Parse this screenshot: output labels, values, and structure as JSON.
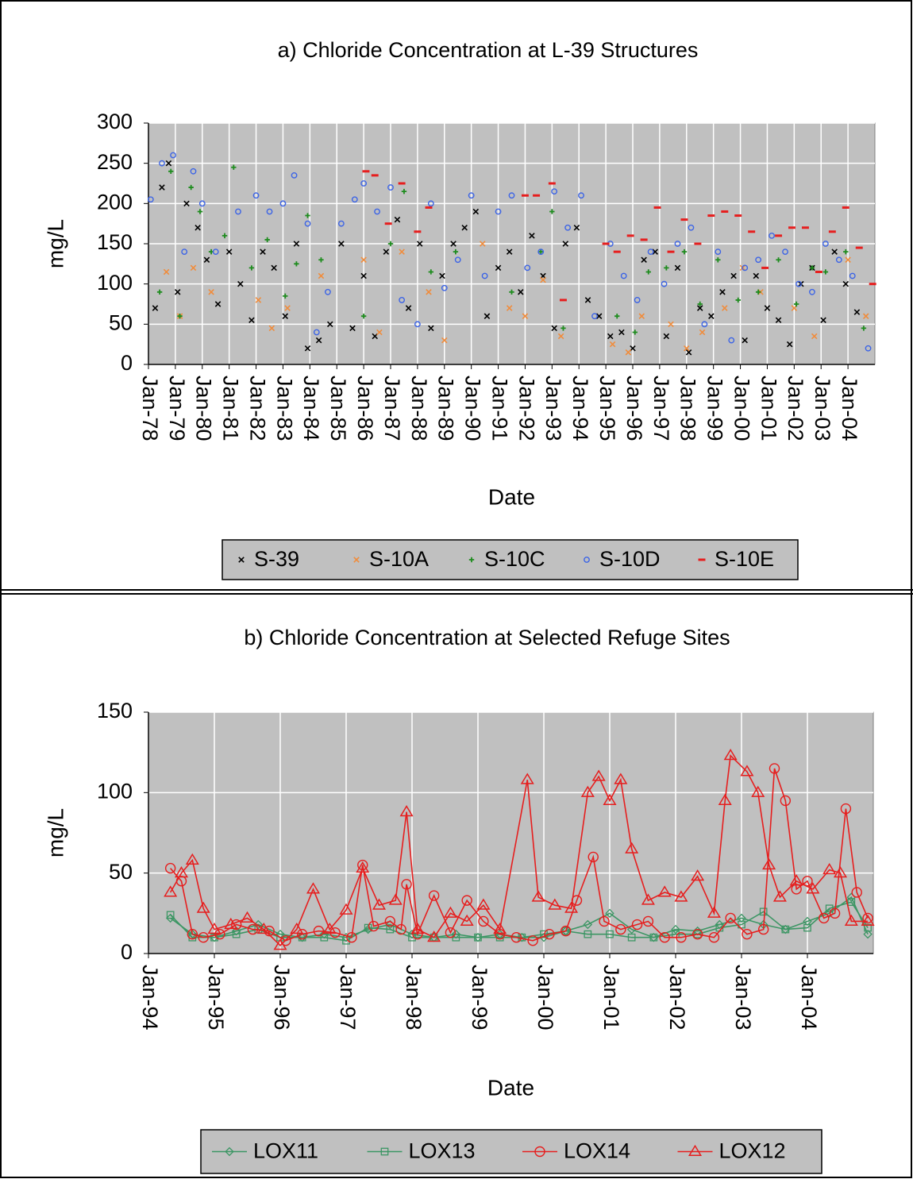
{
  "chart_data": [
    {
      "type": "scatter",
      "title": "a) Chloride Concentration at L-39 Structures",
      "x_label": "Date",
      "y_label": "mg/L",
      "xlim": [
        "Jan-78",
        "Jan-05"
      ],
      "xticks": [
        "Jan-78",
        "Jan-79",
        "Jan-80",
        "Jan-81",
        "Jan-82",
        "Jan-83",
        "Jan-84",
        "Jan-85",
        "Jan-86",
        "Jan-87",
        "Jan-88",
        "Jan-89",
        "Jan-90",
        "Jan-91",
        "Jan-92",
        "Jan-93",
        "Jan-94",
        "Jan-95",
        "Jan-96",
        "Jan-97",
        "Jan-98",
        "Jan-99",
        "Jan-00",
        "Jan-01",
        "Jan-02",
        "Jan-03",
        "Jan-04"
      ],
      "ylim": [
        0,
        300
      ],
      "yticks": [
        0,
        50,
        100,
        150,
        200,
        250,
        300
      ],
      "grid": true,
      "legend": "bottom",
      "series": [
        {
          "name": "S-39",
          "color": "#000000",
          "marker": "x",
          "x": [
            "Apr-78",
            "Jul-78",
            "Oct-78",
            "Feb-79",
            "Jun-79",
            "Nov-79",
            "Mar-80",
            "Aug-80",
            "Jan-81",
            "Jun-81",
            "Nov-81",
            "Apr-82",
            "Sep-82",
            "Feb-83",
            "Jul-83",
            "Dec-83",
            "May-84",
            "Oct-84",
            "Mar-85",
            "Aug-85",
            "Jan-86",
            "Jun-86",
            "Nov-86",
            "Apr-87",
            "Sep-87",
            "Feb-88",
            "Jul-88",
            "Dec-88",
            "May-89",
            "Oct-89",
            "Mar-90",
            "Aug-90",
            "Jan-91",
            "Jun-91",
            "Nov-91",
            "Apr-92",
            "Sep-92",
            "Feb-93",
            "Jul-93",
            "Dec-93",
            "May-94",
            "Oct-94",
            "Mar-95",
            "Aug-95",
            "Jan-96",
            "Jun-96",
            "Nov-96",
            "Apr-97",
            "Sep-97",
            "Feb-98",
            "Jul-98",
            "Dec-98",
            "May-99",
            "Oct-99",
            "Mar-00",
            "Aug-00",
            "Jan-01",
            "Jun-01",
            "Nov-01",
            "Apr-02",
            "Sep-02",
            "Feb-03",
            "Jul-03",
            "Dec-03",
            "May-04"
          ],
          "values": [
            70,
            220,
            250,
            90,
            200,
            170,
            130,
            75,
            140,
            100,
            55,
            140,
            120,
            60,
            150,
            20,
            30,
            50,
            150,
            45,
            110,
            35,
            140,
            180,
            70,
            150,
            45,
            110,
            150,
            170,
            190,
            60,
            120,
            140,
            90,
            160,
            110,
            45,
            150,
            170,
            80,
            60,
            35,
            40,
            20,
            130,
            140,
            35,
            120,
            15,
            70,
            60,
            90,
            110,
            30,
            110,
            70,
            55,
            25,
            100,
            120,
            55,
            140,
            100,
            65
          ]
        },
        {
          "name": "S-10A",
          "color": "#f08c3c",
          "marker": "x",
          "x": [
            "Sep-78",
            "Mar-79",
            "Sep-79",
            "May-80",
            "Feb-82",
            "Aug-82",
            "Mar-83",
            "Jun-84",
            "Jan-86",
            "Aug-86",
            "Jun-87",
            "Jun-88",
            "Jan-89",
            "Jun-90",
            "Jun-91",
            "Jan-92",
            "Sep-92",
            "May-93",
            "Apr-95",
            "Nov-95",
            "May-96",
            "Jun-97",
            "Jan-98",
            "Aug-98",
            "Jun-99",
            "Feb-00",
            "Oct-00",
            "Jan-02",
            "Oct-02",
            "Jan-04",
            "Sep-04"
          ],
          "values": [
            115,
            60,
            120,
            90,
            80,
            45,
            70,
            110,
            130,
            40,
            140,
            90,
            30,
            150,
            70,
            60,
            105,
            35,
            25,
            15,
            60,
            50,
            20,
            40,
            70,
            120,
            90,
            70,
            35,
            130,
            60
          ]
        },
        {
          "name": "S-10C",
          "color": "#1e8c1e",
          "marker": "plus",
          "x": [
            "Jun-78",
            "Nov-78",
            "Mar-79",
            "Aug-79",
            "Dec-79",
            "May-80",
            "Nov-80",
            "Mar-81",
            "Nov-81",
            "Jun-82",
            "Feb-83",
            "Jul-83",
            "Dec-83",
            "Jun-84",
            "Jan-86",
            "Jan-87",
            "Jul-87",
            "Jul-88",
            "Jun-89",
            "Jul-91",
            "Aug-92",
            "Jan-93",
            "Jun-93",
            "Jun-95",
            "Feb-96",
            "Aug-96",
            "Apr-97",
            "Dec-97",
            "Jul-98",
            "Mar-99",
            "Dec-99",
            "Sep-00",
            "Jun-01",
            "Feb-02",
            "Sep-02",
            "Mar-03",
            "Dec-03",
            "Aug-04"
          ],
          "values": [
            90,
            240,
            60,
            220,
            190,
            140,
            160,
            245,
            120,
            155,
            85,
            125,
            185,
            130,
            60,
            150,
            215,
            115,
            140,
            90,
            140,
            190,
            45,
            60,
            40,
            115,
            120,
            140,
            75,
            130,
            80,
            90,
            130,
            75,
            120,
            115,
            140,
            45
          ]
        },
        {
          "name": "S-10D",
          "color": "#3c64e6",
          "marker": "circle",
          "x": [
            "Feb-78",
            "Jul-78",
            "Dec-78",
            "May-79",
            "Sep-79",
            "Jan-80",
            "Jul-80",
            "May-81",
            "Jan-82",
            "Jul-82",
            "Jan-83",
            "Jun-83",
            "Dec-83",
            "Apr-84",
            "Sep-84",
            "Mar-85",
            "Sep-85",
            "Jan-86",
            "Jul-86",
            "Jan-87",
            "Jun-87",
            "Jan-88",
            "Jul-88",
            "Jan-89",
            "Jul-89",
            "Jan-90",
            "Jul-90",
            "Jan-91",
            "Jul-91",
            "Feb-92",
            "Aug-92",
            "Feb-93",
            "Aug-93",
            "Feb-94",
            "Aug-94",
            "Mar-95",
            "Sep-95",
            "Mar-96",
            "Sep-96",
            "Mar-97",
            "Sep-97",
            "Mar-98",
            "Sep-98",
            "Mar-99",
            "Sep-99",
            "Mar-00",
            "Sep-00",
            "Mar-01",
            "Sep-01",
            "Mar-02",
            "Sep-02",
            "Mar-03",
            "Sep-03",
            "Mar-04",
            "Oct-04"
          ],
          "values": [
            205,
            250,
            260,
            140,
            240,
            200,
            140,
            190,
            210,
            190,
            200,
            235,
            175,
            40,
            90,
            175,
            205,
            225,
            190,
            220,
            80,
            50,
            200,
            95,
            130,
            210,
            110,
            190,
            210,
            120,
            140,
            215,
            170,
            210,
            60,
            150,
            110,
            80,
            140,
            100,
            150,
            170,
            50,
            140,
            30,
            120,
            130,
            160,
            140,
            100,
            90,
            150,
            130,
            110,
            20
          ]
        },
        {
          "name": "S-10E",
          "color": "#e61e1e",
          "marker": "dash",
          "x": [
            "Feb-86",
            "Jun-86",
            "Dec-86",
            "Jun-87",
            "Jan-88",
            "Jun-88",
            "Jan-92",
            "Jun-92",
            "Jan-93",
            "Jun-93",
            "Jan-95",
            "Jun-95",
            "Dec-95",
            "Jun-96",
            "Dec-96",
            "Jun-97",
            "Dec-97",
            "Jun-98",
            "Dec-98",
            "Jun-99",
            "Dec-99",
            "Jun-00",
            "Dec-00",
            "Jun-01",
            "Dec-01",
            "Jun-02",
            "Dec-02",
            "Jun-03",
            "Dec-03",
            "Jun-04",
            "Dec-04"
          ],
          "values": [
            240,
            235,
            175,
            225,
            165,
            195,
            210,
            210,
            225,
            80,
            150,
            140,
            160,
            155,
            195,
            140,
            180,
            150,
            185,
            190,
            185,
            165,
            120,
            160,
            170,
            170,
            115,
            165,
            195,
            145,
            100
          ]
        }
      ]
    },
    {
      "type": "line",
      "title": "b) Chloride Concentration at Selected Refuge Sites",
      "x_label": "Date",
      "y_label": "mg/L",
      "xlim": [
        "Jan-94",
        "Jan-05"
      ],
      "xticks": [
        "Jan-94",
        "Jan-95",
        "Jan-96",
        "Jan-97",
        "Jan-98",
        "Jan-99",
        "Jan-00",
        "Jan-01",
        "Jan-02",
        "Jan-03",
        "Jan-04"
      ],
      "ylim": [
        0,
        150
      ],
      "yticks": [
        0,
        50,
        100,
        150
      ],
      "grid": true,
      "legend": "bottom",
      "series": [
        {
          "name": "LOX11",
          "color": "#3c9664",
          "marker": "diamond",
          "x": [
            "May-94",
            "Sep-94",
            "Jan-95",
            "May-95",
            "Sep-95",
            "Jan-96",
            "May-96",
            "Sep-96",
            "Jan-97",
            "May-97",
            "Sep-97",
            "Jan-98",
            "May-98",
            "Sep-98",
            "Jan-99",
            "May-99",
            "Sep-99",
            "Jan-00",
            "May-00",
            "Sep-00",
            "Jan-01",
            "May-01",
            "Sep-01",
            "Jan-02",
            "May-02",
            "Sep-02",
            "Jan-03",
            "May-03",
            "Sep-03",
            "Jan-04",
            "May-04",
            "Sep-04",
            "Dec-04"
          ],
          "values": [
            22,
            12,
            10,
            14,
            18,
            12,
            10,
            12,
            10,
            15,
            18,
            12,
            10,
            12,
            10,
            12,
            10,
            10,
            14,
            18,
            25,
            15,
            10,
            15,
            14,
            18,
            22,
            18,
            15,
            20,
            25,
            35,
            12
          ]
        },
        {
          "name": "LOX13",
          "color": "#3c9664",
          "marker": "square",
          "x": [
            "May-94",
            "Sep-94",
            "Jan-95",
            "May-95",
            "Sep-95",
            "Jan-96",
            "May-96",
            "Sep-96",
            "Jan-97",
            "May-97",
            "Sep-97",
            "Jan-98",
            "May-98",
            "Sep-98",
            "Jan-99",
            "May-99",
            "Sep-99",
            "Jan-00",
            "May-00",
            "Sep-00",
            "Jan-01",
            "May-01",
            "Sep-01",
            "Jan-02",
            "May-02",
            "Sep-02",
            "Jan-03",
            "May-03",
            "Sep-03",
            "Jan-04",
            "May-04",
            "Sep-04",
            "Dec-04"
          ],
          "values": [
            24,
            10,
            10,
            12,
            15,
            10,
            10,
            10,
            8,
            16,
            15,
            10,
            10,
            10,
            10,
            10,
            10,
            12,
            14,
            12,
            12,
            10,
            10,
            12,
            12,
            16,
            18,
            26,
            15,
            16,
            28,
            32,
            16
          ]
        },
        {
          "name": "LOX14",
          "color": "#e61e1e",
          "marker": "circle",
          "x": [
            "May-94",
            "Jul-94",
            "Sep-94",
            "Nov-94",
            "Feb-95",
            "May-95",
            "Aug-95",
            "Nov-95",
            "Feb-96",
            "May-96",
            "Aug-96",
            "Nov-96",
            "Feb-97",
            "Apr-97",
            "Jun-97",
            "Sep-97",
            "Nov-97",
            "Dec-97",
            "Feb-98",
            "May-98",
            "Aug-98",
            "Nov-98",
            "Feb-99",
            "May-99",
            "Aug-99",
            "Nov-99",
            "Feb-00",
            "May-00",
            "Jul-00",
            "Oct-00",
            "Dec-00",
            "Mar-01",
            "Jun-01",
            "Aug-01",
            "Nov-01",
            "Feb-02",
            "May-02",
            "Aug-02",
            "Nov-02",
            "Feb-03",
            "May-03",
            "Jul-03",
            "Sep-03",
            "Nov-03",
            "Jan-04",
            "Apr-04",
            "Jun-04",
            "Aug-04",
            "Oct-04",
            "Dec-04"
          ],
          "values": [
            53,
            45,
            12,
            10,
            12,
            18,
            15,
            14,
            8,
            12,
            14,
            13,
            10,
            55,
            17,
            20,
            15,
            43,
            12,
            36,
            13,
            33,
            20,
            12,
            10,
            8,
            12,
            14,
            33,
            60,
            20,
            15,
            18,
            20,
            10,
            10,
            12,
            10,
            22,
            12,
            15,
            115,
            95,
            40,
            45,
            22,
            25,
            90,
            38,
            22
          ]
        },
        {
          "name": "LOX12",
          "color": "#e61e1e",
          "marker": "triangle",
          "x": [
            "May-94",
            "Jul-94",
            "Sep-94",
            "Nov-94",
            "Jan-95",
            "Apr-95",
            "Jul-95",
            "Oct-95",
            "Jan-96",
            "Apr-96",
            "Jul-96",
            "Oct-96",
            "Jan-97",
            "Apr-97",
            "Jul-97",
            "Oct-97",
            "Dec-97",
            "Feb-98",
            "May-98",
            "Aug-98",
            "Nov-98",
            "Feb-99",
            "May-99",
            "Oct-99",
            "Dec-99",
            "Mar-00",
            "Jun-00",
            "Sep-00",
            "Nov-00",
            "Jan-01",
            "Mar-01",
            "May-01",
            "Aug-01",
            "Nov-01",
            "Feb-02",
            "May-02",
            "Aug-02",
            "Oct-02",
            "Nov-02",
            "Feb-03",
            "Apr-03",
            "Jun-03",
            "Aug-03",
            "Nov-03",
            "Feb-04",
            "May-04",
            "Jul-04",
            "Sep-04",
            "Dec-04"
          ],
          "values": [
            38,
            50,
            58,
            28,
            15,
            18,
            22,
            15,
            5,
            15,
            40,
            15,
            27,
            53,
            30,
            33,
            88,
            15,
            10,
            25,
            20,
            30,
            15,
            108,
            35,
            30,
            28,
            100,
            110,
            95,
            108,
            65,
            33,
            38,
            35,
            48,
            25,
            95,
            123,
            113,
            100,
            55,
            35,
            45,
            40,
            52,
            50,
            20,
            20
          ]
        }
      ]
    }
  ]
}
